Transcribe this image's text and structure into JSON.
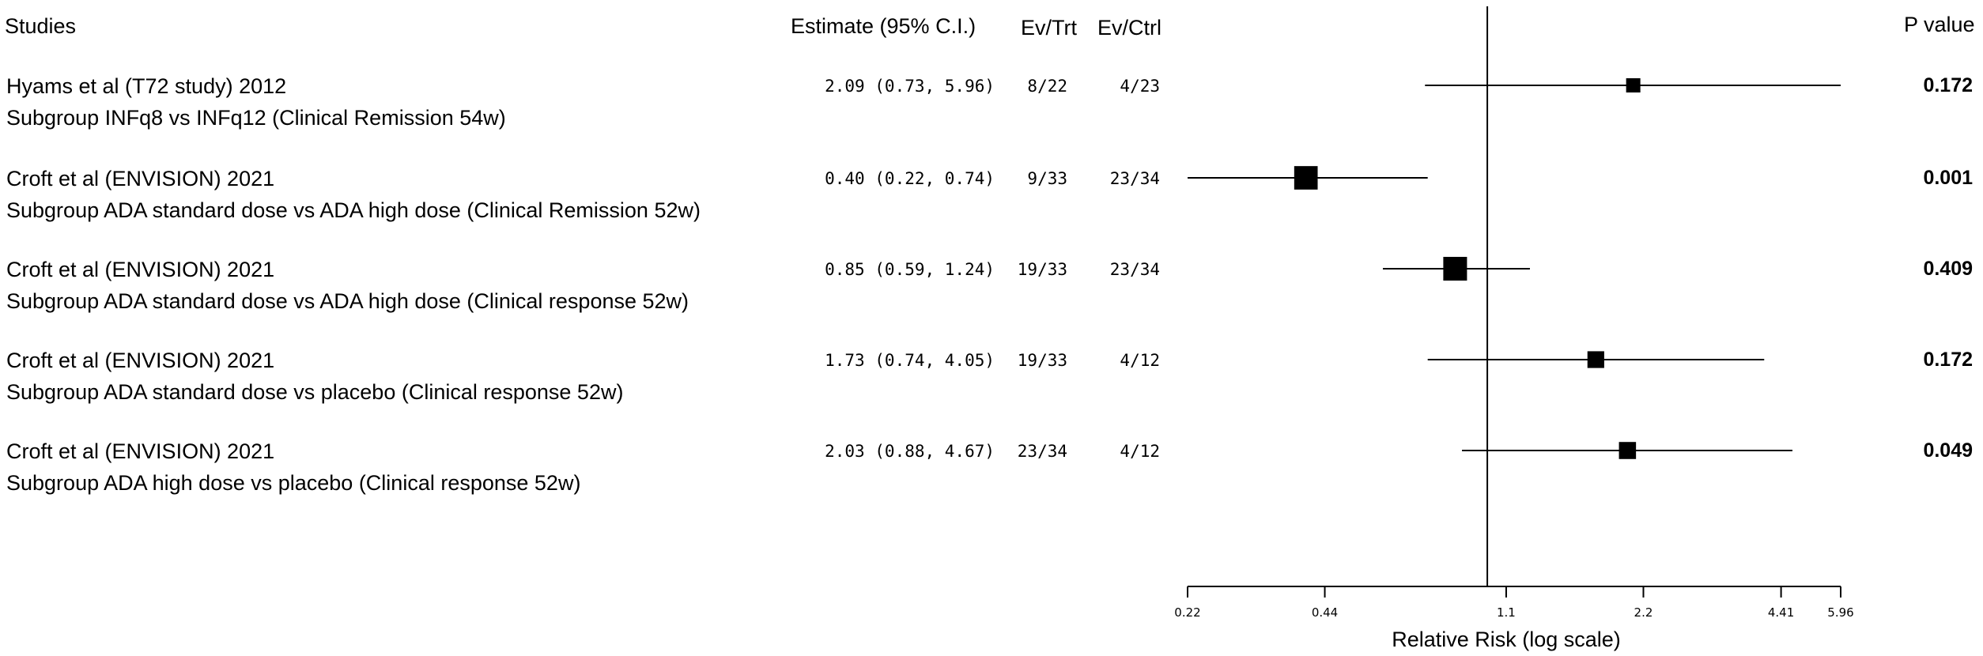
{
  "chart_data": {
    "type": "forest",
    "headers": {
      "studies": "Studies",
      "estimate": "Estimate (95% C.I.)",
      "ev_trt": "Ev/Trt",
      "ev_ctrl": "Ev/Ctrl",
      "p_value": "P value"
    },
    "xlabel": "Relative Risk (log scale)",
    "xscale": "log",
    "xlim": [
      0.22,
      5.96
    ],
    "reference_line": 1.0,
    "xticks": [
      0.22,
      0.44,
      1.1,
      2.2,
      4.41,
      5.96
    ],
    "xtick_labels": [
      "0.22",
      "0.44",
      "1.1",
      "2.2",
      "4.41",
      "5.96"
    ],
    "studies": [
      {
        "study": "Hyams et al (T72 study) 2012",
        "subgroup": "Subgroup INFq8 vs INFq12 (Clinical Remission 54w)",
        "estimate_text": "2.09 (0.73, 5.96)",
        "ev_trt": "8/22",
        "ev_ctrl": "4/23",
        "p_value": "0.172",
        "estimate": 2.09,
        "lower": 0.73,
        "upper": 5.96
      },
      {
        "study": "Croft et al (ENVISION) 2021",
        "subgroup": "Subgroup ADA standard dose vs ADA high dose (Clinical Remission 52w)",
        "estimate_text": "0.40 (0.22, 0.74)",
        "ev_trt": "9/33",
        "ev_ctrl": "23/34",
        "p_value": "0.001",
        "estimate": 0.4,
        "lower": 0.22,
        "upper": 0.74
      },
      {
        "study": "Croft et al (ENVISION) 2021",
        "subgroup": "Subgroup ADA standard dose vs ADA high dose (Clinical response 52w)",
        "estimate_text": "0.85 (0.59, 1.24)",
        "ev_trt": "19/33",
        "ev_ctrl": "23/34",
        "p_value": "0.409",
        "estimate": 0.85,
        "lower": 0.59,
        "upper": 1.24
      },
      {
        "study": "Croft et al (ENVISION) 2021",
        "subgroup": "Subgroup ADA standard dose vs placebo (Clinical response 52w)",
        "estimate_text": "1.73 (0.74, 4.05)",
        "ev_trt": "19/33",
        "ev_ctrl": "4/12",
        "p_value": "0.172",
        "estimate": 1.73,
        "lower": 0.74,
        "upper": 4.05
      },
      {
        "study": "Croft et al (ENVISION) 2021",
        "subgroup": "Subgroup ADA high dose vs placebo (Clinical response 52w)",
        "estimate_text": "2.03 (0.88, 4.67)",
        "ev_trt": "23/34",
        "ev_ctrl": "4/12",
        "p_value": "0.049",
        "estimate": 2.03,
        "lower": 0.88,
        "upper": 4.67
      }
    ]
  }
}
